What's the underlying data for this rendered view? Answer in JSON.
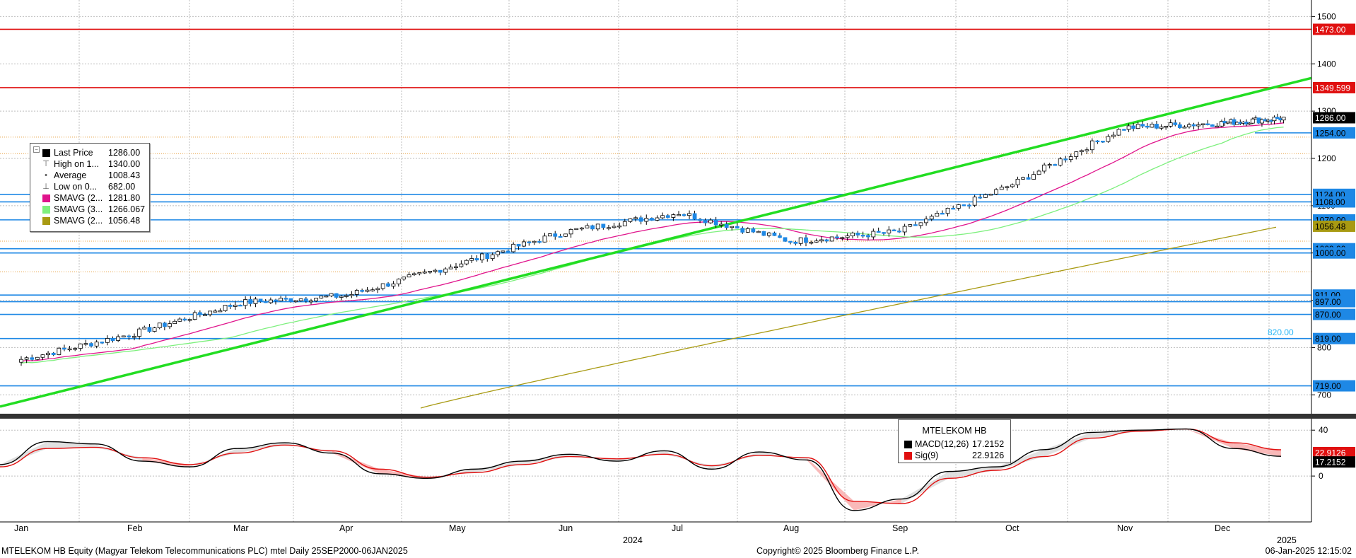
{
  "footer": {
    "security": "MTELEKOM HB Equity (Magyar Telekom Telecommunications PLC) mtel  Daily 25SEP2000-06JAN2025",
    "copyright": "Copyright© 2025 Bloomberg Finance L.P.",
    "timestamp": "06-Jan-2025 12:15:02"
  },
  "legend": {
    "items": [
      {
        "label": "Last Price",
        "value": "1286.00",
        "icon": "black-square",
        "color": "#000000"
      },
      {
        "label": "High on 1...",
        "value": "1340.00",
        "icon": "high-marker-icon"
      },
      {
        "label": "Average",
        "value": "1008.43",
        "icon": "average-marker-icon"
      },
      {
        "label": "Low on 0...",
        "value": "682.00",
        "icon": "low-marker-icon"
      },
      {
        "label": "SMAVG (2...",
        "value": "1281.80",
        "icon": "square",
        "color": "#e0148c"
      },
      {
        "label": "SMAVG (3...",
        "value": "1266.067",
        "icon": "square",
        "color": "#7ef07e"
      },
      {
        "label": "SMAVG (2...",
        "value": "1056.48",
        "icon": "square",
        "color": "#a89a12"
      }
    ]
  },
  "macd_legend": {
    "title": "MTELEKOM HB",
    "items": [
      {
        "label": "MACD(12,26)",
        "value": "17.2152",
        "color": "#000000"
      },
      {
        "label": "Sig(9)",
        "value": "22.9126",
        "color": "#e01010"
      }
    ]
  },
  "colors": {
    "candle_up": "#ffffff",
    "candle_down": "#1e88e5",
    "resistance": "#e01010",
    "support": "#1e88e5",
    "trendline": "#22dd22",
    "sma_fast": "#e0148c",
    "sma_mid": "#7ef07e",
    "sma_slow": "#a89a12",
    "macd": "#000000",
    "signal": "#e01010",
    "grid": "#bdbdbd"
  },
  "chart_data": [
    {
      "type": "candlestick",
      "title": "MTELEKOM HB Equity",
      "x": [
        "Jan",
        "Feb",
        "Mar",
        "Apr",
        "May",
        "Jun",
        "Jul",
        "Aug",
        "Sep",
        "Oct",
        "Nov",
        "Dec"
      ],
      "x_year_labels": [
        "2024",
        "2025"
      ],
      "yticks": [
        "700",
        "800",
        "900",
        "1000",
        "1100",
        "1200",
        "1300",
        "1400",
        "1500"
      ],
      "ylim": [
        660,
        1535
      ],
      "grid": true,
      "price_monthly_close": [
        {
          "month": "Jan",
          "close": 775
        },
        {
          "month": "Feb",
          "close": 830
        },
        {
          "month": "Mar",
          "close": 895
        },
        {
          "month": "Apr",
          "close": 910
        },
        {
          "month": "May",
          "close": 975
        },
        {
          "month": "Jun",
          "close": 1045
        },
        {
          "month": "Jul",
          "close": 1085
        },
        {
          "month": "Aug",
          "close": 1025
        },
        {
          "month": "Sep",
          "close": 1045
        },
        {
          "month": "Oct",
          "close": 1145
        },
        {
          "month": "Nov",
          "close": 1265
        },
        {
          "month": "Dec",
          "close": 1275
        },
        {
          "month": "Jan 2025",
          "close": 1286
        }
      ],
      "horizontal_levels": [
        {
          "value": 1473.0,
          "label": "1473.00",
          "style": "resistance"
        },
        {
          "value": 1349.599,
          "label": "1349.599",
          "style": "resistance"
        },
        {
          "value": 1286.0,
          "label": "1286.00",
          "style": "last-price"
        },
        {
          "value": 1254.0,
          "label": "1254.00",
          "style": "support"
        },
        {
          "value": 1124.0,
          "label": "1124.00",
          "style": "support"
        },
        {
          "value": 1108.0,
          "label": "1108.00",
          "style": "support"
        },
        {
          "value": 1070.0,
          "label": "1070.00",
          "style": "support"
        },
        {
          "value": 1056.48,
          "label": "1056.48",
          "style": "sma-slow"
        },
        {
          "value": 1009.0,
          "label": "1009.00",
          "style": "support"
        },
        {
          "value": 1000.0,
          "label": "1000.00",
          "style": "support"
        },
        {
          "value": 911.0,
          "label": "911.00",
          "style": "support"
        },
        {
          "value": 897.0,
          "label": "897.00",
          "style": "support"
        },
        {
          "value": 870.0,
          "label": "870.00",
          "style": "support"
        },
        {
          "value": 819.0,
          "label": "819.00",
          "style": "support"
        },
        {
          "value": 719.0,
          "label": "719.00",
          "style": "support"
        }
      ],
      "annotations": [
        {
          "text": "820.00",
          "value": 820
        }
      ],
      "trendline": {
        "from": {
          "x": "Jan",
          "y": 675
        },
        "to": {
          "x": "Jan 2025",
          "y": 1370
        }
      },
      "series": [
        {
          "name": "Last Price",
          "value": 1286.0
        },
        {
          "name": "High",
          "value": 1340.0
        },
        {
          "name": "Average",
          "value": 1008.43
        },
        {
          "name": "Low",
          "value": 682.0
        },
        {
          "name": "SMAVG fast",
          "value": 1281.8
        },
        {
          "name": "SMAVG mid",
          "value": 1266.067
        },
        {
          "name": "SMAVG slow",
          "value": 1056.48
        }
      ]
    },
    {
      "type": "line",
      "title": "MTELEKOM HB",
      "yticks": [
        "0",
        "40"
      ],
      "ylim": [
        -40,
        50
      ],
      "series": [
        {
          "name": "MACD(12,26)",
          "last": 17.2152,
          "values": [
            10,
            30,
            28,
            13,
            8,
            24,
            29,
            20,
            2,
            -2,
            6,
            13,
            19,
            13,
            22,
            6,
            21,
            14,
            -30,
            -20,
            4,
            8,
            23,
            38,
            40,
            41,
            24,
            17.2152
          ]
        },
        {
          "name": "Sig(9)",
          "last": 22.9126,
          "values": [
            8,
            24,
            25,
            16,
            10,
            20,
            27,
            22,
            6,
            -1,
            3,
            10,
            17,
            15,
            19,
            9,
            18,
            16,
            -22,
            -24,
            -2,
            5,
            17,
            33,
            39,
            41,
            29,
            22.9126
          ]
        }
      ],
      "value_labels": [
        "22.9126",
        "17.2152"
      ]
    }
  ]
}
